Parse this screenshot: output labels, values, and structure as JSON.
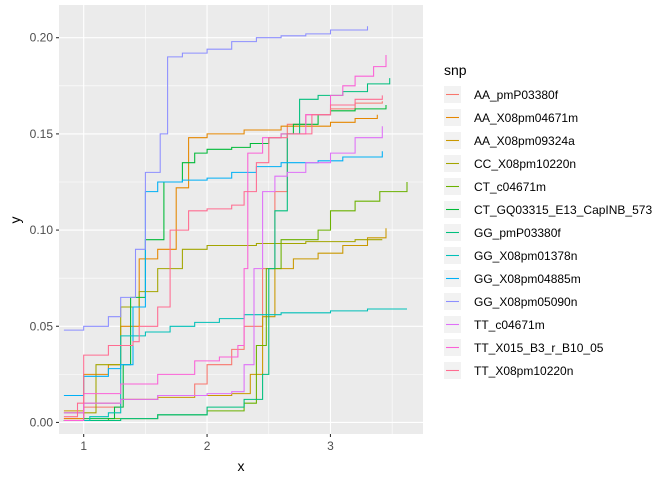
{
  "chart_data": {
    "type": "line",
    "title": "",
    "xlabel": "x",
    "ylabel": "y",
    "xlim": [
      0.8,
      3.75
    ],
    "ylim": [
      -0.006,
      0.217
    ],
    "x_ticks": [
      1,
      2,
      3
    ],
    "x_tick_labels": [
      "1",
      "2",
      "3"
    ],
    "y_ticks": [
      0.0,
      0.05,
      0.1,
      0.15,
      0.2
    ],
    "y_tick_labels": [
      "0.00",
      "0.05",
      "0.10",
      "0.15",
      "0.20"
    ],
    "grid": true,
    "legend_title": "snp",
    "legend_position": "right",
    "series": [
      {
        "name": "AA_pmP03380f",
        "color": "#F8766D",
        "points": [
          [
            0.84,
            0.002
          ],
          [
            1.0,
            0.008
          ],
          [
            1.3,
            0.012
          ],
          [
            1.6,
            0.014
          ],
          [
            1.9,
            0.02
          ],
          [
            2.0,
            0.03
          ],
          [
            2.2,
            0.038
          ],
          [
            2.3,
            0.05
          ],
          [
            2.45,
            0.08
          ],
          [
            2.55,
            0.12
          ],
          [
            2.65,
            0.155
          ],
          [
            2.8,
            0.16
          ],
          [
            3.0,
            0.163
          ],
          [
            3.2,
            0.166
          ],
          [
            3.42,
            0.167
          ]
        ]
      },
      {
        "name": "AA_X08pm04671m",
        "color": "#E58700",
        "points": [
          [
            0.84,
            0.002
          ],
          [
            1.0,
            0.025
          ],
          [
            1.2,
            0.03
          ],
          [
            1.3,
            0.05
          ],
          [
            1.45,
            0.085
          ],
          [
            1.6,
            0.09
          ],
          [
            1.75,
            0.122
          ],
          [
            1.85,
            0.148
          ],
          [
            2.0,
            0.15
          ],
          [
            2.3,
            0.152
          ],
          [
            2.6,
            0.154
          ],
          [
            3.0,
            0.156
          ],
          [
            3.2,
            0.158
          ],
          [
            3.38,
            0.16
          ]
        ]
      },
      {
        "name": "AA_X08pm09324a",
        "color": "#C99800",
        "points": [
          [
            0.84,
            0.006
          ],
          [
            1.0,
            0.01
          ],
          [
            1.3,
            0.012
          ],
          [
            1.6,
            0.013
          ],
          [
            1.9,
            0.014
          ],
          [
            2.0,
            0.014
          ],
          [
            2.2,
            0.015
          ],
          [
            2.35,
            0.025
          ],
          [
            2.45,
            0.055
          ],
          [
            2.55,
            0.08
          ],
          [
            2.7,
            0.085
          ],
          [
            2.9,
            0.088
          ],
          [
            3.1,
            0.092
          ],
          [
            3.3,
            0.096
          ],
          [
            3.45,
            0.101
          ]
        ]
      },
      {
        "name": "CC_X08pm10220n",
        "color": "#A3A500",
        "points": [
          [
            0.84,
            0.005
          ],
          [
            1.1,
            0.03
          ],
          [
            1.3,
            0.06
          ],
          [
            1.45,
            0.068
          ],
          [
            1.6,
            0.08
          ],
          [
            1.8,
            0.09
          ],
          [
            2.0,
            0.092
          ],
          [
            2.4,
            0.093
          ],
          [
            2.8,
            0.094
          ],
          [
            3.2,
            0.095
          ],
          [
            3.42,
            0.095
          ]
        ]
      },
      {
        "name": "CT_c04671m",
        "color": "#6BB100",
        "points": [
          [
            0.84,
            0.001
          ],
          [
            1.2,
            0.002
          ],
          [
            1.6,
            0.004
          ],
          [
            2.0,
            0.006
          ],
          [
            2.3,
            0.01
          ],
          [
            2.4,
            0.04
          ],
          [
            2.48,
            0.08
          ],
          [
            2.6,
            0.095
          ],
          [
            2.9,
            0.1
          ],
          [
            3.0,
            0.11
          ],
          [
            3.2,
            0.115
          ],
          [
            3.4,
            0.12
          ],
          [
            3.62,
            0.125
          ]
        ]
      },
      {
        "name": "CT_GQ03315_E13_CapINB_573",
        "color": "#00BA38",
        "points": [
          [
            0.84,
            0.001
          ],
          [
            1.0,
            0.002
          ],
          [
            1.25,
            0.008
          ],
          [
            1.32,
            0.03
          ],
          [
            1.38,
            0.065
          ],
          [
            1.5,
            0.095
          ],
          [
            1.65,
            0.125
          ],
          [
            1.8,
            0.135
          ],
          [
            1.9,
            0.14
          ],
          [
            2.0,
            0.142
          ],
          [
            2.2,
            0.143
          ],
          [
            2.35,
            0.145
          ],
          [
            2.5,
            0.148
          ],
          [
            2.6,
            0.15
          ],
          [
            2.7,
            0.155
          ],
          [
            2.9,
            0.16
          ],
          [
            3.0,
            0.162
          ],
          [
            3.2,
            0.163
          ],
          [
            3.45,
            0.165
          ]
        ]
      },
      {
        "name": "GG_pmP03380f",
        "color": "#00BF7D",
        "points": [
          [
            0.84,
            0.001
          ],
          [
            1.3,
            0.002
          ],
          [
            1.6,
            0.004
          ],
          [
            2.0,
            0.008
          ],
          [
            2.3,
            0.012
          ],
          [
            2.45,
            0.025
          ],
          [
            2.5,
            0.08
          ],
          [
            2.55,
            0.11
          ],
          [
            2.65,
            0.15
          ],
          [
            2.75,
            0.168
          ],
          [
            2.9,
            0.17
          ],
          [
            3.1,
            0.172
          ],
          [
            3.3,
            0.176
          ],
          [
            3.48,
            0.179
          ]
        ]
      },
      {
        "name": "GG_X08pm01378n",
        "color": "#00C0B8",
        "points": [
          [
            0.84,
            0.001
          ],
          [
            1.05,
            0.003
          ],
          [
            1.2,
            0.005
          ],
          [
            1.3,
            0.045
          ],
          [
            1.5,
            0.047
          ],
          [
            1.7,
            0.05
          ],
          [
            1.9,
            0.052
          ],
          [
            2.1,
            0.054
          ],
          [
            2.3,
            0.056
          ],
          [
            2.6,
            0.057
          ],
          [
            3.0,
            0.058
          ],
          [
            3.3,
            0.059
          ],
          [
            3.62,
            0.059
          ]
        ]
      },
      {
        "name": "GG_X08pm04885m",
        "color": "#00B0F6",
        "points": [
          [
            0.84,
            0.014
          ],
          [
            1.0,
            0.024
          ],
          [
            1.2,
            0.028
          ],
          [
            1.3,
            0.03
          ],
          [
            1.4,
            0.06
          ],
          [
            1.5,
            0.12
          ],
          [
            1.6,
            0.125
          ],
          [
            1.8,
            0.126
          ],
          [
            2.0,
            0.127
          ],
          [
            2.2,
            0.13
          ],
          [
            2.4,
            0.133
          ],
          [
            2.6,
            0.135
          ],
          [
            2.9,
            0.136
          ],
          [
            3.1,
            0.138
          ],
          [
            3.42,
            0.141
          ]
        ]
      },
      {
        "name": "GG_X08pm05090n",
        "color": "#8D8FFF",
        "points": [
          [
            0.84,
            0.048
          ],
          [
            1.0,
            0.05
          ],
          [
            1.2,
            0.055
          ],
          [
            1.3,
            0.065
          ],
          [
            1.42,
            0.09
          ],
          [
            1.5,
            0.13
          ],
          [
            1.62,
            0.15
          ],
          [
            1.68,
            0.19
          ],
          [
            1.8,
            0.192
          ],
          [
            2.0,
            0.194
          ],
          [
            2.2,
            0.198
          ],
          [
            2.4,
            0.2
          ],
          [
            2.6,
            0.201
          ],
          [
            2.8,
            0.202
          ],
          [
            3.0,
            0.204
          ],
          [
            3.3,
            0.206
          ]
        ]
      },
      {
        "name": "TT_c04671m",
        "color": "#DF70F8",
        "points": [
          [
            0.84,
            0.005
          ],
          [
            1.0,
            0.01
          ],
          [
            1.3,
            0.012
          ],
          [
            1.6,
            0.014
          ],
          [
            2.0,
            0.015
          ],
          [
            2.2,
            0.016
          ],
          [
            2.3,
            0.03
          ],
          [
            2.38,
            0.08
          ],
          [
            2.45,
            0.12
          ],
          [
            2.55,
            0.128
          ],
          [
            2.65,
            0.13
          ],
          [
            2.8,
            0.135
          ],
          [
            3.0,
            0.14
          ],
          [
            3.2,
            0.148
          ],
          [
            3.42,
            0.154
          ]
        ]
      },
      {
        "name": "TT_X015_B3_r_B10_05",
        "color": "#FB61D7",
        "points": [
          [
            0.84,
            0.001
          ],
          [
            1.0,
            0.015
          ],
          [
            1.3,
            0.02
          ],
          [
            1.6,
            0.025
          ],
          [
            1.9,
            0.032
          ],
          [
            2.1,
            0.034
          ],
          [
            2.25,
            0.04
          ],
          [
            2.3,
            0.08
          ],
          [
            2.33,
            0.14
          ],
          [
            2.45,
            0.148
          ],
          [
            2.6,
            0.15
          ],
          [
            2.8,
            0.16
          ],
          [
            3.0,
            0.17
          ],
          [
            3.1,
            0.175
          ],
          [
            3.2,
            0.18
          ],
          [
            3.35,
            0.185
          ],
          [
            3.45,
            0.191
          ]
        ]
      },
      {
        "name": "TT_X08pm10220n",
        "color": "#FF6C91",
        "points": [
          [
            0.84,
            0.003
          ],
          [
            0.95,
            0.01
          ],
          [
            1.0,
            0.035
          ],
          [
            1.2,
            0.04
          ],
          [
            1.4,
            0.042
          ],
          [
            1.45,
            0.05
          ],
          [
            1.6,
            0.06
          ],
          [
            1.7,
            0.1
          ],
          [
            1.85,
            0.11
          ],
          [
            2.0,
            0.111
          ],
          [
            2.2,
            0.113
          ],
          [
            2.3,
            0.12
          ],
          [
            2.4,
            0.135
          ],
          [
            2.5,
            0.148
          ],
          [
            2.65,
            0.15
          ],
          [
            2.85,
            0.16
          ],
          [
            3.0,
            0.165
          ],
          [
            3.2,
            0.168
          ],
          [
            3.42,
            0.17
          ]
        ]
      }
    ]
  }
}
